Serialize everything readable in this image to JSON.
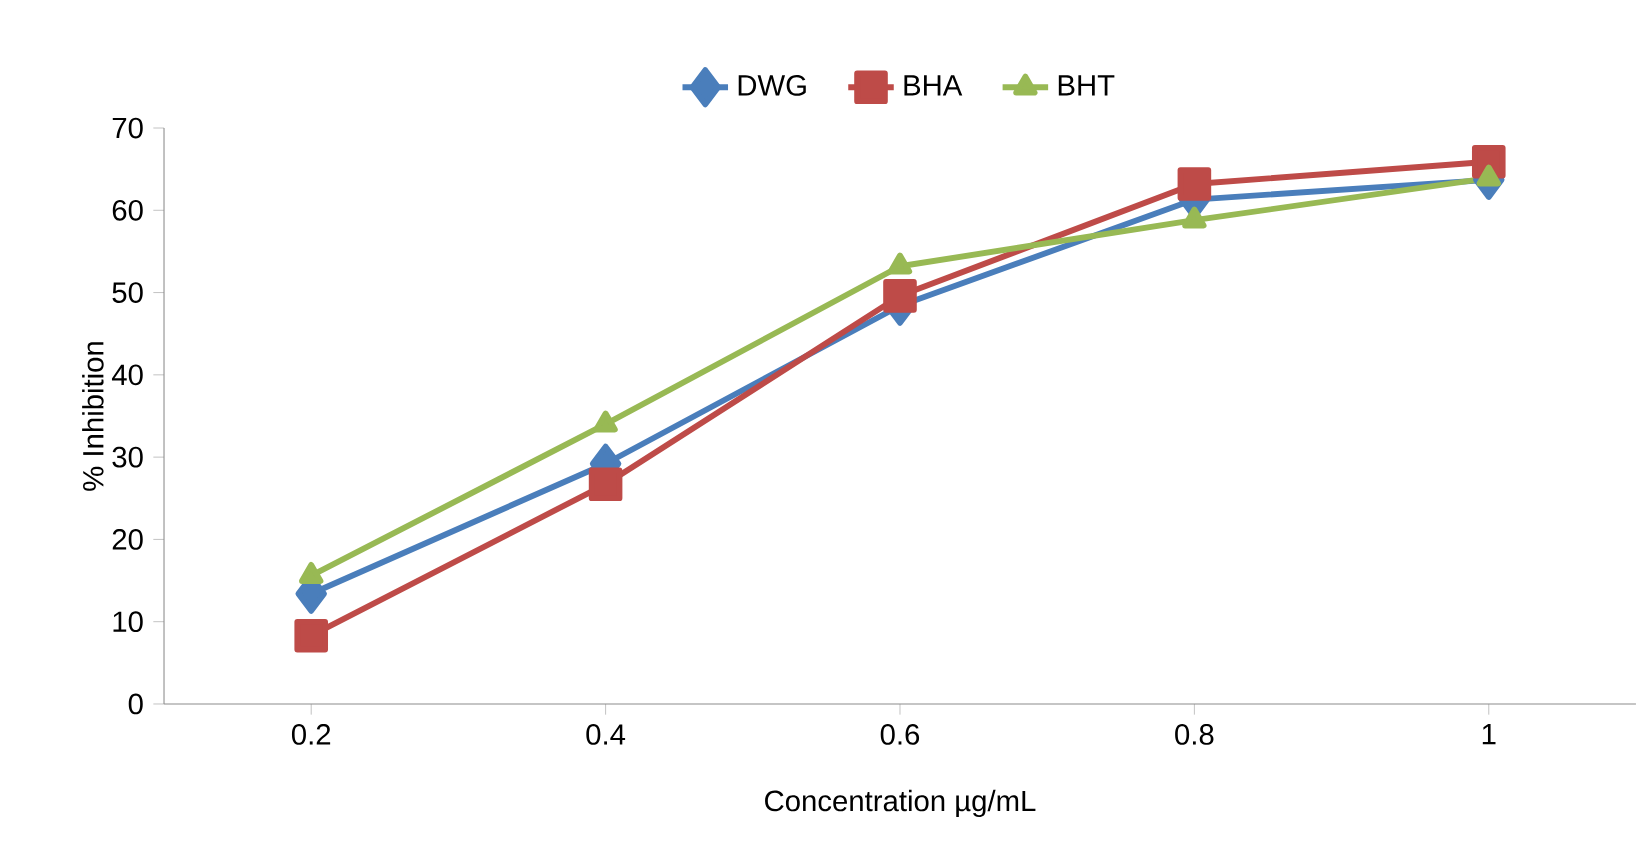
{
  "chart_data": {
    "type": "line",
    "xlabel": "Concentration µg/mL",
    "ylabel": "% Inhibition",
    "categories": [
      "0.2",
      "0.4",
      "0.6",
      "0.8",
      "1"
    ],
    "series": [
      {
        "name": "DWG",
        "color": "#4a7ebb",
        "marker": "diamond",
        "values": [
          13.4,
          29.2,
          48.4,
          61.3,
          63.7
        ]
      },
      {
        "name": "BHA",
        "color": "#be4b48",
        "marker": "square",
        "values": [
          8.3,
          26.7,
          49.6,
          63.2,
          65.9
        ]
      },
      {
        "name": "BHT",
        "color": "#98b954",
        "marker": "triangle",
        "values": [
          15.6,
          34.0,
          53.2,
          58.8,
          63.9
        ]
      }
    ],
    "ylim": [
      0,
      70
    ],
    "yticks": [
      0,
      10,
      20,
      30,
      40,
      50,
      60,
      70
    ],
    "grid": false,
    "legend": "top",
    "line_style": "solid"
  }
}
